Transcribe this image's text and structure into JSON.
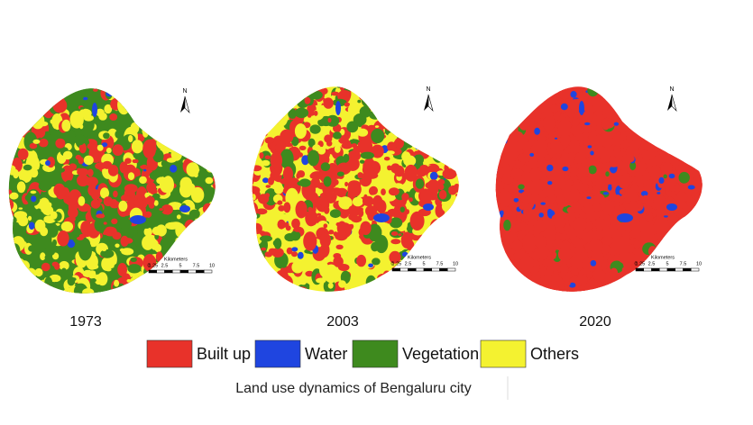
{
  "maps": [
    {
      "year": "1973",
      "north": "N",
      "scale_title": "Kilometers",
      "scale_labels": [
        "0",
        "1.25",
        "2.5",
        "5",
        "7.5",
        "10"
      ]
    },
    {
      "year": "2003",
      "north": "N",
      "scale_title": "Kilometers",
      "scale_labels": [
        "0",
        "1.25",
        "2.5",
        "5",
        "7.5",
        "10"
      ]
    },
    {
      "year": "2020",
      "north": "N",
      "scale_title": "Kilometers",
      "scale_labels": [
        "0",
        "1.25",
        "2.5",
        "5",
        "7.5",
        "10"
      ]
    }
  ],
  "legend": [
    {
      "label": "Built up",
      "color": "#e8322a"
    },
    {
      "label": "Water",
      "color": "#1f45e0"
    },
    {
      "label": "Vegetation",
      "color": "#3e8a1e"
    },
    {
      "label": "Others",
      "color": "#f4f230"
    }
  ],
  "caption": "Land use dynamics of Bengaluru city"
}
